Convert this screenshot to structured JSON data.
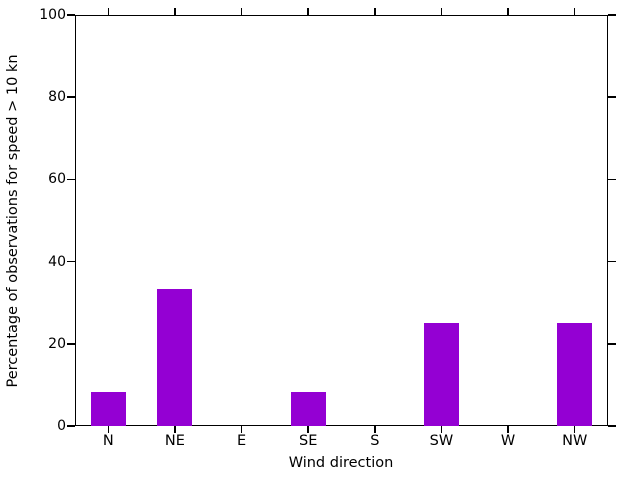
{
  "chart_data": {
    "type": "bar",
    "categories": [
      "N",
      "NE",
      "E",
      "SE",
      "S",
      "SW",
      "W",
      "NW"
    ],
    "values": [
      8.3,
      33.3,
      0,
      8.3,
      0,
      25,
      0,
      25
    ],
    "title": "",
    "xlabel": "Wind direction",
    "ylabel": "Percentage of observations for speed > 10 kn",
    "ylim": [
      0,
      100
    ],
    "yticks": [
      0,
      20,
      40,
      60,
      80,
      100
    ],
    "bar_color": "#9400d3",
    "axis_color": "#000000",
    "background": "#ffffff",
    "grid": false,
    "legend_position": "none"
  }
}
